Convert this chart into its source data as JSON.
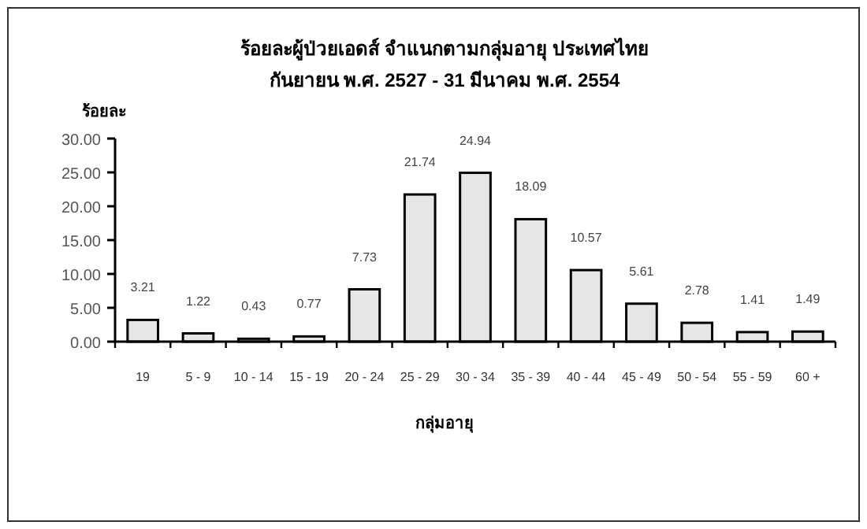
{
  "chart_data": {
    "type": "bar",
    "title": "ร้อยละผู้ป่วยเอดส์  จำแนกตามกลุ่มอายุ  ประเทศไทย",
    "subtitle": "กันยายน พ.ศ. 2527 - 31 มีนาคม  พ.ศ. 2554",
    "ylabel": "ร้อยละ",
    "xlabel": "กลุ่มอายุ",
    "categories": [
      "19",
      "5 - 9",
      "10 - 14",
      "15 - 19",
      "20  - 24",
      "25 - 29",
      "30 - 34",
      "35 - 39",
      "40 - 44",
      "45 - 49",
      "50 - 54",
      "55 - 59",
      "60 +"
    ],
    "values": [
      3.21,
      1.22,
      0.43,
      0.77,
      7.73,
      21.74,
      24.94,
      18.09,
      10.57,
      5.61,
      2.78,
      1.41,
      1.49
    ],
    "color": "#e6e6e6",
    "data_labels": true,
    "grid": false,
    "ylim": [
      0,
      30
    ],
    "yticks": [
      {
        "value": 0,
        "label": "0.00"
      },
      {
        "value": 5,
        "label": "5.00"
      },
      {
        "value": 10,
        "label": "10.00"
      },
      {
        "value": 15,
        "label": "15.00"
      },
      {
        "value": 20,
        "label": "20.00"
      },
      {
        "value": 25,
        "label": "25.00"
      },
      {
        "value": 30,
        "label": "30.00"
      }
    ]
  }
}
